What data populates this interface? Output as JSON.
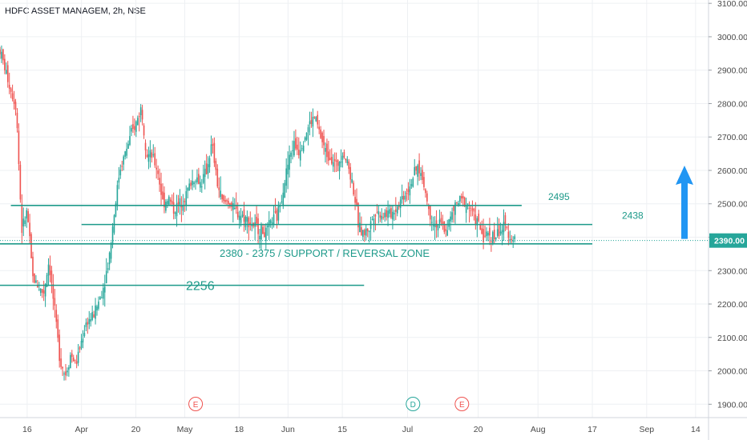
{
  "symbol_header": "HDFC ASSET MANAGEM, 2h, NSE",
  "colors": {
    "up": "#26a69a",
    "down": "#ef5350",
    "line": "#1e9a8a",
    "grid": "#eef0f3",
    "axis_text": "#4a4a4a",
    "price_badge": "#26a69a",
    "arrow": "#2196f3",
    "event_earnings": "#ef5350",
    "event_dividend": "#26a69a"
  },
  "chart_data": {
    "type": "candlestick",
    "title": "HDFC ASSET MANAGEM, 2h, NSE",
    "y_axis": {
      "range": [
        1860,
        3110
      ],
      "ticks": [
        "1900.00",
        "2000.00",
        "2100.00",
        "2200.00",
        "2300.00",
        "2400.00",
        "2500.00",
        "2600.00",
        "2700.00",
        "2800.00",
        "2900.00",
        "3000.00",
        "3100.00"
      ],
      "tick_values": [
        1900,
        2000,
        2100,
        2200,
        2300,
        2400,
        2500,
        2600,
        2700,
        2800,
        2900,
        3000,
        3100
      ]
    },
    "x_axis": {
      "ticks": [
        {
          "label": "16",
          "pos": 0.05
        },
        {
          "label": "Apr",
          "pos": 0.15
        },
        {
          "label": "20",
          "pos": 0.25
        },
        {
          "label": "May",
          "pos": 0.34
        },
        {
          "label": "18",
          "pos": 0.44
        },
        {
          "label": "Jun",
          "pos": 0.53
        },
        {
          "label": "15",
          "pos": 0.63
        },
        {
          "label": "Jul",
          "pos": 0.75
        },
        {
          "label": "20",
          "pos": 0.88
        },
        {
          "label": "Aug",
          "pos": 0.99
        },
        {
          "label": "17",
          "pos": 1.09
        },
        {
          "label": "Sep",
          "pos": 1.19
        },
        {
          "label": "14",
          "pos": 1.28
        }
      ]
    },
    "current_price": {
      "label": "2390.00",
      "value": 2390
    },
    "price_path": [
      [
        0.0,
        2960
      ],
      [
        0.02,
        2840
      ],
      [
        0.03,
        2790
      ],
      [
        0.04,
        2420
      ],
      [
        0.05,
        2480
      ],
      [
        0.06,
        2280
      ],
      [
        0.08,
        2230
      ],
      [
        0.09,
        2330
      ],
      [
        0.11,
        2040
      ],
      [
        0.12,
        1985
      ],
      [
        0.13,
        2050
      ],
      [
        0.14,
        2020
      ],
      [
        0.15,
        2090
      ],
      [
        0.16,
        2150
      ],
      [
        0.17,
        2160
      ],
      [
        0.18,
        2200
      ],
      [
        0.19,
        2250
      ],
      [
        0.2,
        2330
      ],
      [
        0.21,
        2470
      ],
      [
        0.22,
        2600
      ],
      [
        0.23,
        2650
      ],
      [
        0.24,
        2700
      ],
      [
        0.25,
        2740
      ],
      [
        0.26,
        2790
      ],
      [
        0.27,
        2650
      ],
      [
        0.28,
        2640
      ],
      [
        0.29,
        2600
      ],
      [
        0.3,
        2500
      ],
      [
        0.31,
        2520
      ],
      [
        0.32,
        2480
      ],
      [
        0.33,
        2500
      ],
      [
        0.34,
        2520
      ],
      [
        0.35,
        2560
      ],
      [
        0.36,
        2580
      ],
      [
        0.37,
        2560
      ],
      [
        0.38,
        2600
      ],
      [
        0.39,
        2680
      ],
      [
        0.4,
        2560
      ],
      [
        0.41,
        2500
      ],
      [
        0.42,
        2510
      ],
      [
        0.43,
        2480
      ],
      [
        0.45,
        2460
      ],
      [
        0.47,
        2430
      ],
      [
        0.49,
        2410
      ],
      [
        0.5,
        2450
      ],
      [
        0.51,
        2460
      ],
      [
        0.52,
        2540
      ],
      [
        0.53,
        2620
      ],
      [
        0.54,
        2680
      ],
      [
        0.55,
        2660
      ],
      [
        0.56,
        2700
      ],
      [
        0.57,
        2740
      ],
      [
        0.58,
        2760
      ],
      [
        0.59,
        2700
      ],
      [
        0.6,
        2650
      ],
      [
        0.61,
        2640
      ],
      [
        0.62,
        2610
      ],
      [
        0.63,
        2660
      ],
      [
        0.64,
        2620
      ],
      [
        0.65,
        2550
      ],
      [
        0.66,
        2430
      ],
      [
        0.67,
        2410
      ],
      [
        0.68,
        2430
      ],
      [
        0.69,
        2480
      ],
      [
        0.7,
        2470
      ],
      [
        0.71,
        2470
      ],
      [
        0.72,
        2470
      ],
      [
        0.73,
        2490
      ],
      [
        0.74,
        2520
      ],
      [
        0.75,
        2540
      ],
      [
        0.76,
        2580
      ],
      [
        0.77,
        2610
      ],
      [
        0.78,
        2560
      ],
      [
        0.79,
        2470
      ],
      [
        0.8,
        2440
      ],
      [
        0.81,
        2440
      ],
      [
        0.82,
        2420
      ],
      [
        0.83,
        2460
      ],
      [
        0.84,
        2500
      ],
      [
        0.85,
        2510
      ],
      [
        0.86,
        2500
      ],
      [
        0.87,
        2470
      ],
      [
        0.88,
        2440
      ],
      [
        0.89,
        2400
      ],
      [
        0.9,
        2410
      ],
      [
        0.91,
        2400
      ],
      [
        0.92,
        2420
      ],
      [
        0.93,
        2430
      ],
      [
        0.94,
        2400
      ],
      [
        0.95,
        2390
      ]
    ],
    "levels": [
      {
        "value": 2495,
        "label": "2495",
        "from": 0.02,
        "to": 0.96
      },
      {
        "value": 2438,
        "label": "2438",
        "from": 0.15,
        "to": 1.09
      },
      {
        "value": 2380,
        "label": "2380 - 2375 / SUPPORT / REVERSAL ZONE",
        "from": 0.0,
        "to": 1.09
      },
      {
        "value": 2256,
        "label": "2256",
        "from": 0.0,
        "to": 0.67
      }
    ],
    "events": [
      {
        "label": "E",
        "pos": 0.36,
        "kind": "earnings"
      },
      {
        "label": "D",
        "pos": 0.76,
        "kind": "dividend"
      },
      {
        "label": "E",
        "pos": 0.85,
        "kind": "earnings"
      }
    ],
    "projection_arrow": {
      "from": 2390,
      "to": 2600,
      "pos": 1.15
    }
  }
}
